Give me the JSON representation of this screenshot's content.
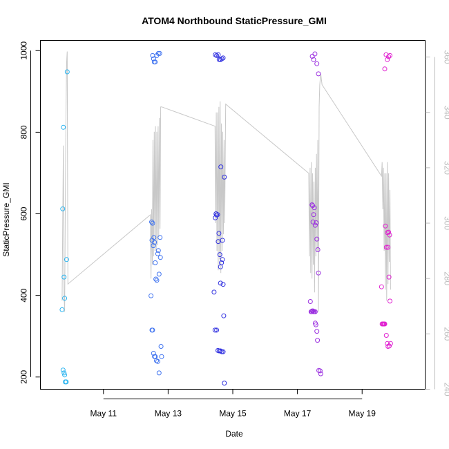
{
  "chart_data": {
    "type": "scatter",
    "title": "ATOM4 Northbound StaticPressure_GMI",
    "xlabel": "Date",
    "ylabel": "StaticPressure_GMI",
    "x_ticks": [
      "May 11",
      "May 13",
      "May 15",
      "May 17",
      "May 19"
    ],
    "x_tick_days": [
      11,
      13,
      15,
      17,
      19
    ],
    "x_range_days": [
      9.05,
      20.95
    ],
    "y_ticks": [
      200,
      400,
      600,
      800,
      1000
    ],
    "y_range": [
      170,
      1025
    ],
    "y_right_ticks": [
      240,
      260,
      280,
      300,
      320,
      340,
      360
    ],
    "y_right_range": [
      240,
      366
    ],
    "grid": false,
    "series": [
      {
        "color": "#26b3f0",
        "points": [
          [
            9.72,
            365
          ],
          [
            9.74,
            612
          ],
          [
            9.76,
            812
          ],
          [
            9.78,
            445
          ],
          [
            9.8,
            393
          ],
          [
            9.75,
            217
          ],
          [
            9.78,
            210
          ],
          [
            9.8,
            205
          ],
          [
            9.82,
            188
          ],
          [
            9.85,
            188
          ],
          [
            9.86,
            488
          ],
          [
            9.88,
            948
          ]
        ]
      },
      {
        "color": "#3f73f0",
        "points": [
          [
            12.47,
            399
          ],
          [
            12.49,
            580
          ],
          [
            12.5,
            535
          ],
          [
            12.52,
            577
          ],
          [
            12.54,
            522
          ],
          [
            12.56,
            542
          ],
          [
            12.58,
            530
          ],
          [
            12.6,
            480
          ],
          [
            12.52,
            988
          ],
          [
            12.55,
            980
          ],
          [
            12.57,
            972
          ],
          [
            12.6,
            972
          ],
          [
            12.65,
            988
          ],
          [
            12.7,
            993
          ],
          [
            12.74,
            993
          ],
          [
            12.5,
            315
          ],
          [
            12.52,
            315
          ],
          [
            12.55,
            258
          ],
          [
            12.58,
            250
          ],
          [
            12.6,
            250
          ],
          [
            12.64,
            240
          ],
          [
            12.68,
            238
          ],
          [
            12.72,
            210
          ],
          [
            12.78,
            275
          ],
          [
            12.8,
            250
          ],
          [
            12.62,
            440
          ],
          [
            12.65,
            437
          ],
          [
            12.72,
            452
          ],
          [
            12.75,
            542
          ],
          [
            12.68,
            502
          ],
          [
            12.7,
            510
          ],
          [
            12.76,
            493
          ]
        ]
      },
      {
        "color": "#2f2fe0",
        "points": [
          [
            14.42,
            408
          ],
          [
            14.46,
            590
          ],
          [
            14.48,
            600
          ],
          [
            14.5,
            597
          ],
          [
            14.53,
            598
          ],
          [
            14.55,
            532
          ],
          [
            14.57,
            552
          ],
          [
            14.6,
            500
          ],
          [
            14.62,
            470
          ],
          [
            14.65,
            480
          ],
          [
            14.68,
            535
          ],
          [
            14.68,
            488
          ],
          [
            14.7,
            427
          ],
          [
            14.72,
            350
          ],
          [
            14.74,
            690
          ],
          [
            14.63,
            715
          ],
          [
            14.46,
            990
          ],
          [
            14.5,
            988
          ],
          [
            14.55,
            990
          ],
          [
            14.58,
            978
          ],
          [
            14.62,
            978
          ],
          [
            14.66,
            980
          ],
          [
            14.7,
            982
          ],
          [
            14.45,
            315
          ],
          [
            14.5,
            315
          ],
          [
            14.54,
            265
          ],
          [
            14.58,
            264
          ],
          [
            14.62,
            264
          ],
          [
            14.66,
            262
          ],
          [
            14.7,
            262
          ],
          [
            14.74,
            185
          ],
          [
            14.62,
            430
          ]
        ]
      },
      {
        "color": "#9b30e0",
        "points": [
          [
            17.4,
            385
          ],
          [
            17.42,
            360
          ],
          [
            17.44,
            360
          ],
          [
            17.46,
            362
          ],
          [
            17.48,
            362
          ],
          [
            17.5,
            360
          ],
          [
            17.52,
            360
          ],
          [
            17.55,
            360
          ],
          [
            17.45,
            622
          ],
          [
            17.47,
            620
          ],
          [
            17.5,
            598
          ],
          [
            17.52,
            615
          ],
          [
            17.48,
            580
          ],
          [
            17.55,
            572
          ],
          [
            17.58,
            578
          ],
          [
            17.6,
            538
          ],
          [
            17.63,
            512
          ],
          [
            17.65,
            455
          ],
          [
            17.55,
            332
          ],
          [
            17.57,
            328
          ],
          [
            17.6,
            312
          ],
          [
            17.62,
            290
          ],
          [
            17.66,
            216
          ],
          [
            17.7,
            215
          ],
          [
            17.72,
            208
          ],
          [
            17.46,
            986
          ],
          [
            17.5,
            978
          ],
          [
            17.54,
            992
          ],
          [
            17.6,
            968
          ],
          [
            17.65,
            943
          ]
        ]
      },
      {
        "color": "#e020d0",
        "points": [
          [
            19.6,
            421
          ],
          [
            19.62,
            330
          ],
          [
            19.64,
            330
          ],
          [
            19.66,
            330
          ],
          [
            19.68,
            330
          ],
          [
            19.7,
            330
          ],
          [
            19.72,
            570
          ],
          [
            19.75,
            518
          ],
          [
            19.78,
            554
          ],
          [
            19.8,
            518
          ],
          [
            19.82,
            555
          ],
          [
            19.85,
            548
          ],
          [
            19.83,
            445
          ],
          [
            19.86,
            386
          ],
          [
            19.75,
            302
          ],
          [
            19.78,
            282
          ],
          [
            19.8,
            275
          ],
          [
            19.84,
            276
          ],
          [
            19.88,
            282
          ],
          [
            19.7,
            955
          ],
          [
            19.74,
            990
          ],
          [
            19.78,
            978
          ],
          [
            19.82,
            985
          ],
          [
            19.86,
            988
          ]
        ]
      }
    ],
    "secondary_line": {
      "color": "#c8c8c8",
      "points": [
        [
          9.72,
          272
        ],
        [
          9.74,
          300
        ],
        [
          9.76,
          328
        ],
        [
          9.78,
          275
        ],
        [
          9.8,
          268
        ],
        [
          9.82,
          305
        ],
        [
          9.84,
          338
        ],
        [
          9.86,
          358
        ],
        [
          9.88,
          362
        ],
        [
          9.9,
          278
        ],
        [
          12.45,
          303
        ],
        [
          12.47,
          280
        ],
        [
          12.49,
          305
        ],
        [
          12.51,
          285
        ],
        [
          12.53,
          330
        ],
        [
          12.55,
          288
        ],
        [
          12.57,
          333
        ],
        [
          12.59,
          290
        ],
        [
          12.61,
          335
        ],
        [
          12.63,
          290
        ],
        [
          12.65,
          333
        ],
        [
          12.67,
          292
        ],
        [
          12.69,
          335
        ],
        [
          12.71,
          295
        ],
        [
          12.73,
          338
        ],
        [
          12.75,
          298
        ],
        [
          12.77,
          342
        ],
        [
          12.8,
          342
        ],
        [
          14.45,
          335
        ],
        [
          14.47,
          300
        ],
        [
          14.49,
          340
        ],
        [
          14.51,
          290
        ],
        [
          14.53,
          340
        ],
        [
          14.55,
          283
        ],
        [
          14.57,
          342
        ],
        [
          14.59,
          287
        ],
        [
          14.61,
          344
        ],
        [
          14.63,
          282
        ],
        [
          14.65,
          336
        ],
        [
          14.67,
          290
        ],
        [
          14.69,
          333
        ],
        [
          14.71,
          296
        ],
        [
          14.73,
          330
        ],
        [
          14.75,
          300
        ],
        [
          14.78,
          343
        ],
        [
          17.35,
          318
        ],
        [
          17.37,
          288
        ],
        [
          17.39,
          320
        ],
        [
          17.41,
          282
        ],
        [
          17.43,
          322
        ],
        [
          17.45,
          280
        ],
        [
          17.47,
          318
        ],
        [
          17.49,
          285
        ],
        [
          17.51,
          315
        ],
        [
          17.53,
          275
        ],
        [
          17.55,
          320
        ],
        [
          17.57,
          288
        ],
        [
          17.59,
          325
        ],
        [
          17.61,
          290
        ],
        [
          17.63,
          330
        ],
        [
          17.65,
          268
        ],
        [
          17.67,
          342
        ],
        [
          17.69,
          350
        ],
        [
          17.72,
          354
        ],
        [
          17.76,
          350
        ],
        [
          19.6,
          317
        ],
        [
          19.62,
          322
        ],
        [
          19.64,
          305
        ],
        [
          19.66,
          320
        ],
        [
          19.68,
          290
        ],
        [
          19.7,
          318
        ],
        [
          19.72,
          276
        ],
        [
          19.74,
          318
        ],
        [
          19.76,
          272
        ],
        [
          19.78,
          322
        ],
        [
          19.8,
          278
        ],
        [
          19.82,
          318
        ],
        [
          19.84,
          286
        ],
        [
          19.86,
          312
        ],
        [
          19.88,
          276
        ]
      ]
    }
  }
}
